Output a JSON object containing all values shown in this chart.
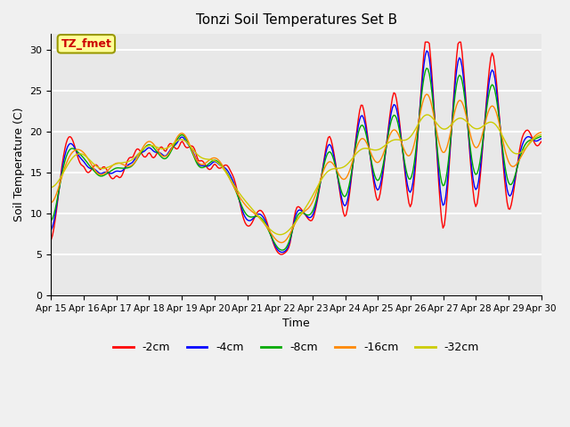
{
  "title": "Tonzi Soil Temperatures Set B",
  "xlabel": "Time",
  "ylabel": "Soil Temperature (C)",
  "ylim": [
    0,
    32
  ],
  "yticks": [
    0,
    5,
    10,
    15,
    20,
    25,
    30
  ],
  "legend_label": "TZ_fmet",
  "series_labels": [
    "-2cm",
    "-4cm",
    "-8cm",
    "-16cm",
    "-32cm"
  ],
  "series_colors": [
    "#ff0000",
    "#0000ff",
    "#00aa00",
    "#ff8800",
    "#cccc00"
  ],
  "xtick_labels": [
    "Apr 15",
    "Apr 16",
    "Apr 17",
    "Apr 18",
    "Apr 19",
    "Apr 20",
    "Apr 21",
    "Apr 22",
    "Apr 23",
    "Apr 24",
    "Apr 25",
    "Apr 26",
    "Apr 27",
    "Apr 28",
    "Apr 29",
    "Apr 30"
  ],
  "background_color": "#e8e8e8",
  "grid_color": "#ffffff",
  "annotation_box_color": "#ffff99",
  "annotation_text_color": "#cc0000",
  "annotation_border_color": "#999900"
}
